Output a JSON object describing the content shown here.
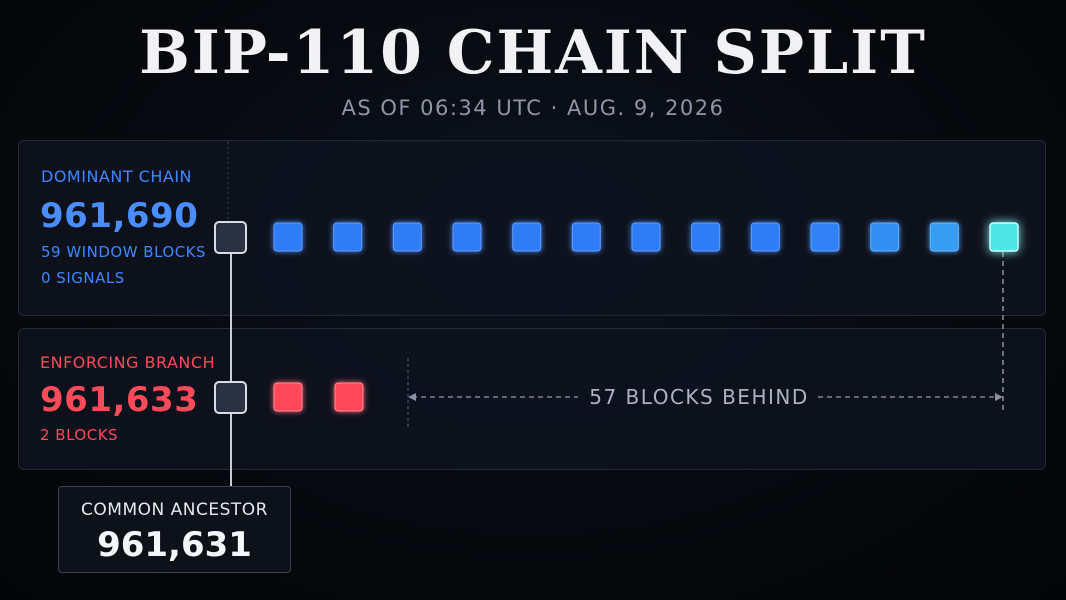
{
  "header": {
    "title": "BIP-110 CHAIN SPLIT",
    "subtitle": "AS OF 06:34 UTC · AUG. 9, 2026"
  },
  "dominant": {
    "heading": "DOMINANT CHAIN",
    "height": "961,690",
    "window_blocks": "59 WINDOW BLOCKS",
    "signals": "0 SIGNALS",
    "chain_blocks_shown": 13,
    "color": "#2f7cf6",
    "tip_color": "#4fe6e8"
  },
  "enforcing": {
    "heading": "ENFORCING BRANCH",
    "height": "961,633",
    "blocks": "2 BLOCKS",
    "chain_blocks_shown": 2,
    "color": "#ff4a5a"
  },
  "gap": {
    "label": "57 BLOCKS BEHIND"
  },
  "ancestor": {
    "label": "COMMON ANCESTOR",
    "height": "961,631",
    "color": "#2a3242"
  }
}
